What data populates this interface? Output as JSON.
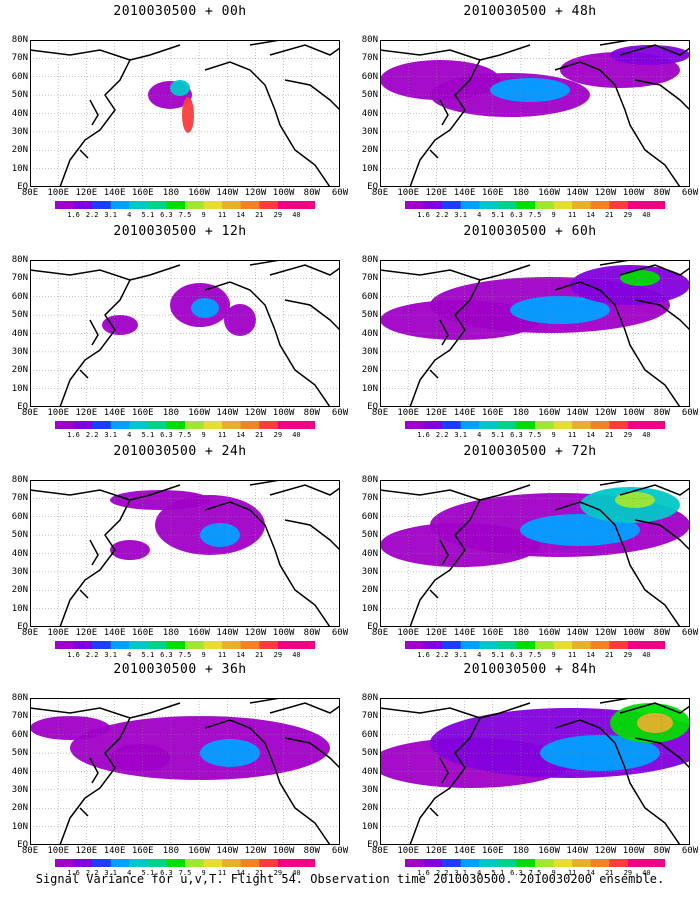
{
  "caption": "Signal Variance for u,v,T. Flight 54. Observation time 2010030500. 2010030200 ensemble.",
  "lat_labels": [
    "80N",
    "70N",
    "60N",
    "50N",
    "40N",
    "30N",
    "20N",
    "10N",
    "EQ"
  ],
  "lon_labels": [
    "80E",
    "100E",
    "120E",
    "140E",
    "160E",
    "180",
    "160W",
    "140W",
    "120W",
    "100W",
    "80W",
    "60W"
  ],
  "colorbar": {
    "levels": [
      "1.6",
      "2.2",
      "3.1",
      "4",
      "5.1",
      "6.3",
      "7.5",
      "9",
      "11",
      "14",
      "21",
      "29",
      "40"
    ],
    "colors": [
      "#a000c8",
      "#8200dc",
      "#1e3cff",
      "#00a0ff",
      "#00c8c8",
      "#00d28c",
      "#00dc00",
      "#a0e632",
      "#e6dc32",
      "#e6af2d",
      "#f08228",
      "#fa3c3c",
      "#f00082"
    ]
  },
  "panels": [
    {
      "title": "2010030500 + 00h"
    },
    {
      "title": "2010030500 + 48h"
    },
    {
      "title": "2010030500 + 12h"
    },
    {
      "title": "2010030500 + 60h"
    },
    {
      "title": "2010030500 + 24h"
    },
    {
      "title": "2010030500 + 72h"
    },
    {
      "title": "2010030500 + 36h"
    },
    {
      "title": "2010030500 + 84h"
    }
  ]
}
